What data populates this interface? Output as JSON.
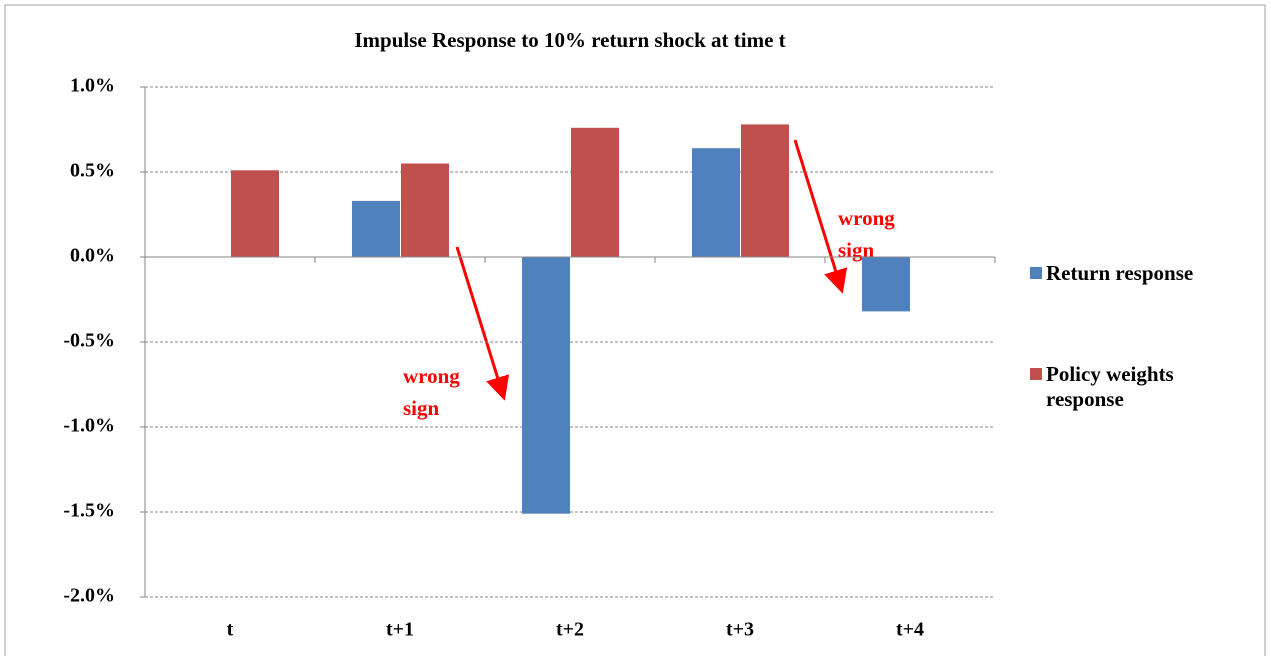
{
  "chart_data": {
    "type": "bar",
    "title": "Impulse Response to 10% return shock at time t",
    "categories": [
      "t",
      "t+1",
      "t+2",
      "t+3",
      "t+4"
    ],
    "series": [
      {
        "name": "Return response",
        "color": "#4f81bd",
        "values": [
          null,
          0.33,
          -1.51,
          0.64,
          -0.32
        ]
      },
      {
        "name": "Policy weights response",
        "color": "#c0504d",
        "values": [
          0.51,
          0.55,
          0.76,
          0.78,
          null
        ]
      }
    ],
    "ylim": [
      -2,
      1
    ],
    "yticks": [
      {
        "value": -2,
        "label": "-2.0%"
      },
      {
        "value": -1.5,
        "label": "-1.5%"
      },
      {
        "value": -1,
        "label": "-1.0%"
      },
      {
        "value": -0.5,
        "label": "-0.5%"
      },
      {
        "value": 0,
        "label": "0.0%"
      },
      {
        "value": 0.5,
        "label": "0.5%"
      },
      {
        "value": 1,
        "label": "1.0%"
      }
    ],
    "grid": true,
    "legend": "right",
    "annotations": [
      {
        "lines": [
          "wrong",
          "sign"
        ]
      },
      {
        "lines": [
          "wrong",
          "sign"
        ]
      }
    ]
  }
}
